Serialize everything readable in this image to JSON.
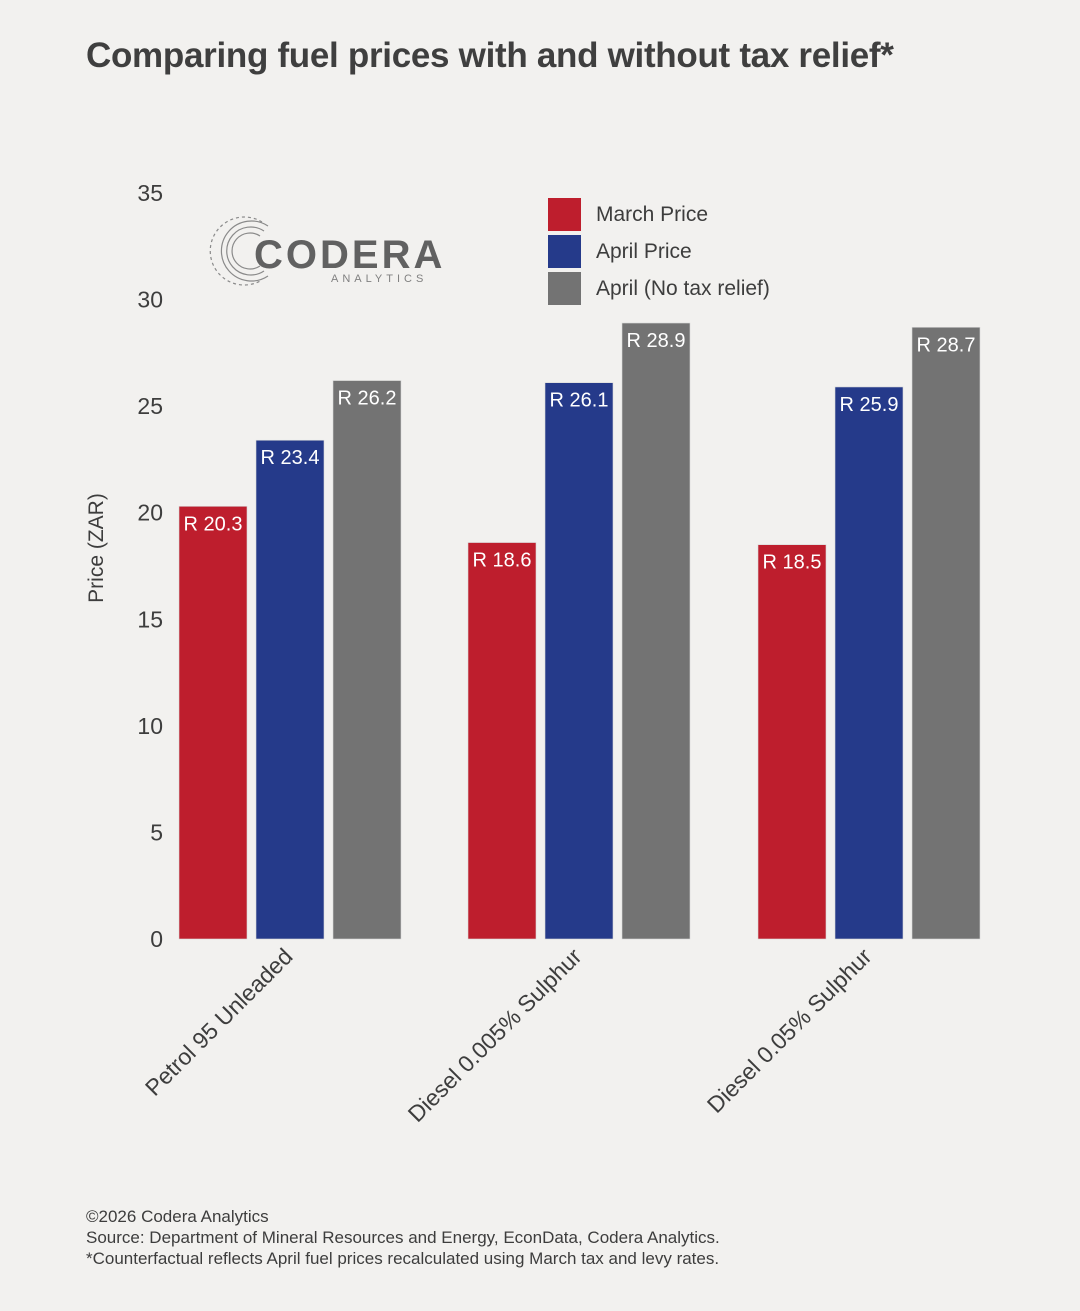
{
  "title": "Comparing fuel prices with and without tax relief*",
  "logo": {
    "name": "CODERA",
    "sub": "ANALYTICS"
  },
  "chart_data": {
    "type": "bar",
    "title": "Comparing fuel prices with and without tax relief*",
    "xlabel": "",
    "ylabel": "Price (ZAR)",
    "ylim": [
      0,
      35
    ],
    "yticks": [
      0,
      5,
      10,
      15,
      20,
      25,
      30,
      35
    ],
    "grid": false,
    "legend_position": "top-right",
    "categories": [
      "Petrol 95 Unleaded",
      "Diesel 0.005% Sulphur",
      "Diesel 0.05% Sulphur"
    ],
    "series": [
      {
        "name": "March Price",
        "color": "#be1e2d",
        "values": [
          20.3,
          18.6,
          18.5
        ],
        "labels": [
          "R 20.3",
          "R 18.6",
          "R 18.5"
        ]
      },
      {
        "name": "April Price",
        "color": "#253a8a",
        "values": [
          23.4,
          26.1,
          25.9
        ],
        "labels": [
          "R 23.4",
          "R 26.1",
          "R 25.9"
        ]
      },
      {
        "name": "April (No tax relief)",
        "color": "#737373",
        "values": [
          26.2,
          28.9,
          28.7
        ],
        "labels": [
          "R 26.2",
          "R 28.9",
          "R 28.7"
        ]
      }
    ]
  },
  "footer": {
    "copyright": "©2026 Codera Analytics",
    "source": "Source: Department of Mineral Resources and Energy, EconData, Codera Analytics.",
    "note": "*Counterfactual reflects April fuel prices recalculated using March tax and levy rates."
  }
}
